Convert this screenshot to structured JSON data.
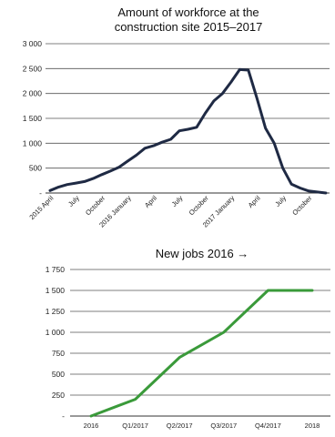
{
  "chart_data": [
    {
      "type": "line",
      "title_line1": "Amount of workforce at the",
      "title_line2": "construction site 2015–2017",
      "ylim": [
        0,
        3000
      ],
      "yticks": [
        0,
        500,
        1000,
        1500,
        2000,
        2500,
        3000
      ],
      "ytick_labels": [
        "-",
        "500",
        "1 000",
        "1 500",
        "2 000",
        "2 500",
        "3 000"
      ],
      "grid": true,
      "line_color": "#1f2a44",
      "x_count": 33,
      "x_tick_labels": [
        {
          "i": 0,
          "label": "2015 April"
        },
        {
          "i": 3,
          "label": "July"
        },
        {
          "i": 6,
          "label": "October"
        },
        {
          "i": 9,
          "label": "2016 January"
        },
        {
          "i": 12,
          "label": "April"
        },
        {
          "i": 15,
          "label": "July"
        },
        {
          "i": 18,
          "label": "October"
        },
        {
          "i": 21,
          "label": "2017 January"
        },
        {
          "i": 24,
          "label": "April"
        },
        {
          "i": 27,
          "label": "July"
        },
        {
          "i": 30,
          "label": "October"
        }
      ],
      "values": [
        50,
        120,
        170,
        200,
        230,
        290,
        370,
        440,
        520,
        640,
        760,
        900,
        950,
        1020,
        1080,
        1250,
        1280,
        1320,
        1600,
        1850,
        2000,
        2230,
        2480,
        2470,
        1900,
        1300,
        1000,
        500,
        180,
        100,
        40,
        20,
        0
      ]
    },
    {
      "type": "line",
      "title": "New jobs 2016 →",
      "ylim": [
        0,
        1750
      ],
      "yticks": [
        0,
        250,
        500,
        750,
        1000,
        1250,
        1500,
        1750
      ],
      "ytick_labels": [
        "-",
        "250",
        "500",
        "750",
        "1 000",
        "1 250",
        "1 500",
        "1 750"
      ],
      "grid": true,
      "line_color": "#3a9a3a",
      "categories": [
        "2016",
        "Q1/2017",
        "Q2/2017",
        "Q3/2017",
        "Q4/2017",
        "2018"
      ],
      "values": [
        0,
        200,
        700,
        1000,
        1500,
        1500
      ]
    }
  ]
}
